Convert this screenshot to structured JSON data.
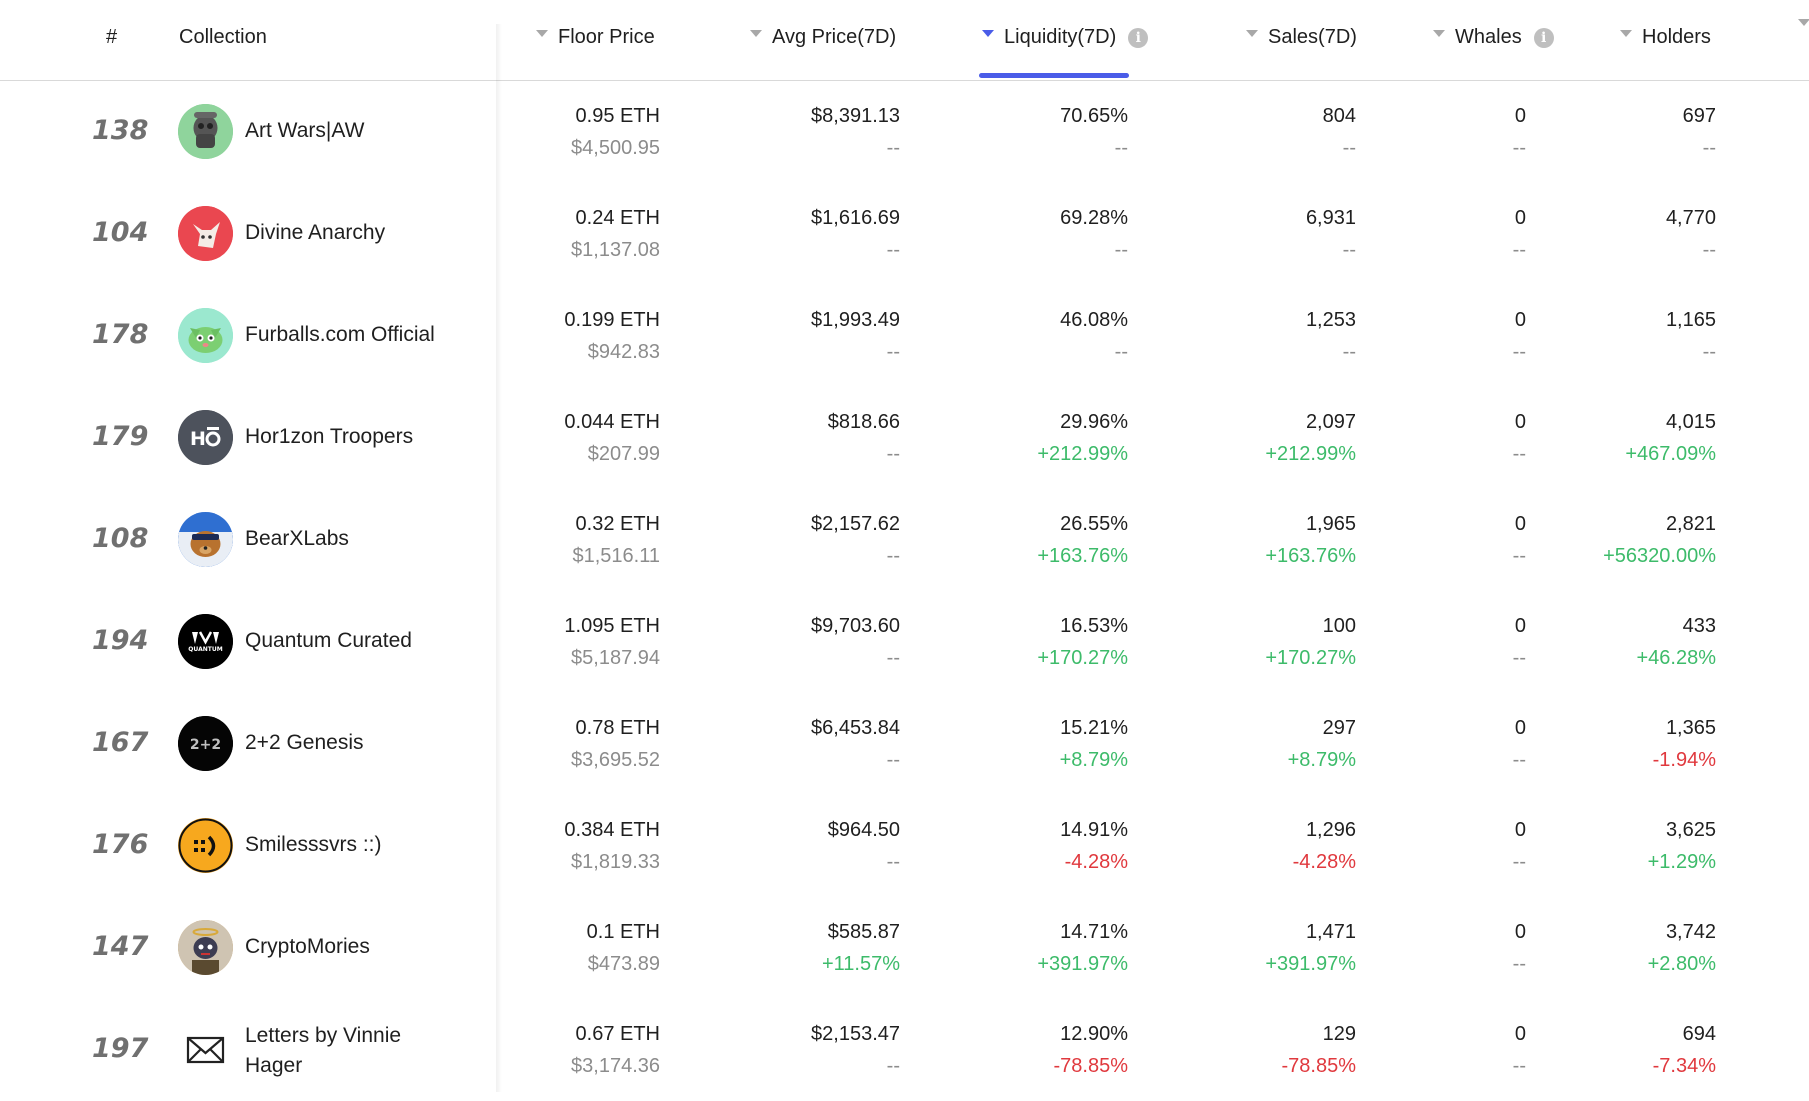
{
  "header": {
    "rank": "#",
    "collection": "Collection",
    "floor_price": "Floor Price",
    "avg_price": "Avg Price(7D)",
    "liquidity": "Liquidity(7D)",
    "sales": "Sales(7D)",
    "whales": "Whales",
    "holders": "Holders"
  },
  "colors": {
    "accent": "#4a5ce8",
    "positive": "#3dbb6a",
    "negative": "#e0393e",
    "muted": "#8c8c8c"
  },
  "rows": [
    {
      "rank": "138",
      "name": "Art Wars|AW",
      "icon": "art-wars-avatar-icon",
      "floor": "0.95 ETH",
      "floor_usd": "$4,500.95",
      "avg": "$8,391.13",
      "avg_chg": "--",
      "liq": "70.65%",
      "liq_chg": "--",
      "sales": "804",
      "sales_chg": "--",
      "whales": "0",
      "whales_chg": "--",
      "holders": "697",
      "holders_chg": "--"
    },
    {
      "rank": "104",
      "name": "Divine Anarchy",
      "icon": "divine-anarchy-avatar-icon",
      "floor": "0.24 ETH",
      "floor_usd": "$1,137.08",
      "avg": "$1,616.69",
      "avg_chg": "--",
      "liq": "69.28%",
      "liq_chg": "--",
      "sales": "6,931",
      "sales_chg": "--",
      "whales": "0",
      "whales_chg": "--",
      "holders": "4,770",
      "holders_chg": "--"
    },
    {
      "rank": "178",
      "name": "Furballs.com Official",
      "icon": "furballs-avatar-icon",
      "floor": "0.199 ETH",
      "floor_usd": "$942.83",
      "avg": "$1,993.49",
      "avg_chg": "--",
      "liq": "46.08%",
      "liq_chg": "--",
      "sales": "1,253",
      "sales_chg": "--",
      "whales": "0",
      "whales_chg": "--",
      "holders": "1,165",
      "holders_chg": "--"
    },
    {
      "rank": "179",
      "name": "Hor1zon Troopers",
      "icon": "horizon-troopers-avatar-icon",
      "floor": "0.044 ETH",
      "floor_usd": "$207.99",
      "avg": "$818.66",
      "avg_chg": "--",
      "liq": "29.96%",
      "liq_chg": "+212.99%",
      "sales": "2,097",
      "sales_chg": "+212.99%",
      "whales": "0",
      "whales_chg": "--",
      "holders": "4,015",
      "holders_chg": "+467.09%"
    },
    {
      "rank": "108",
      "name": "BearXLabs",
      "icon": "bearxlabs-avatar-icon",
      "floor": "0.32 ETH",
      "floor_usd": "$1,516.11",
      "avg": "$2,157.62",
      "avg_chg": "--",
      "liq": "26.55%",
      "liq_chg": "+163.76%",
      "sales": "1,965",
      "sales_chg": "+163.76%",
      "whales": "0",
      "whales_chg": "--",
      "holders": "2,821",
      "holders_chg": "+56320.00%"
    },
    {
      "rank": "194",
      "name": "Quantum Curated",
      "icon": "quantum-curated-avatar-icon",
      "floor": "1.095 ETH",
      "floor_usd": "$5,187.94",
      "avg": "$9,703.60",
      "avg_chg": "--",
      "liq": "16.53%",
      "liq_chg": "+170.27%",
      "sales": "100",
      "sales_chg": "+170.27%",
      "whales": "0",
      "whales_chg": "--",
      "holders": "433",
      "holders_chg": "+46.28%"
    },
    {
      "rank": "167",
      "name": "2+2 Genesis",
      "icon": "two-plus-two-avatar-icon",
      "floor": "0.78 ETH",
      "floor_usd": "$3,695.52",
      "avg": "$6,453.84",
      "avg_chg": "--",
      "liq": "15.21%",
      "liq_chg": "+8.79%",
      "sales": "297",
      "sales_chg": "+8.79%",
      "whales": "0",
      "whales_chg": "--",
      "holders": "1,365",
      "holders_chg": "-1.94%"
    },
    {
      "rank": "176",
      "name": "Smilesssvrs ::)",
      "icon": "smilesssvrs-avatar-icon",
      "floor": "0.384 ETH",
      "floor_usd": "$1,819.33",
      "avg": "$964.50",
      "avg_chg": "--",
      "liq": "14.91%",
      "liq_chg": "-4.28%",
      "sales": "1,296",
      "sales_chg": "-4.28%",
      "whales": "0",
      "whales_chg": "--",
      "holders": "3,625",
      "holders_chg": "+1.29%"
    },
    {
      "rank": "147",
      "name": "CryptoMories",
      "icon": "cryptomories-avatar-icon",
      "floor": "0.1 ETH",
      "floor_usd": "$473.89",
      "avg": "$585.87",
      "avg_chg": "+11.57%",
      "liq": "14.71%",
      "liq_chg": "+391.97%",
      "sales": "1,471",
      "sales_chg": "+391.97%",
      "whales": "0",
      "whales_chg": "--",
      "holders": "3,742",
      "holders_chg": "+2.80%"
    },
    {
      "rank": "197",
      "name": "Letters by Vinnie Hager",
      "icon": "envelope-icon",
      "floor": "0.67 ETH",
      "floor_usd": "$3,174.36",
      "avg": "$2,153.47",
      "avg_chg": "--",
      "liq": "12.90%",
      "liq_chg": "-78.85%",
      "sales": "129",
      "sales_chg": "-78.85%",
      "whales": "0",
      "whales_chg": "--",
      "holders": "694",
      "holders_chg": "-7.34%"
    }
  ]
}
